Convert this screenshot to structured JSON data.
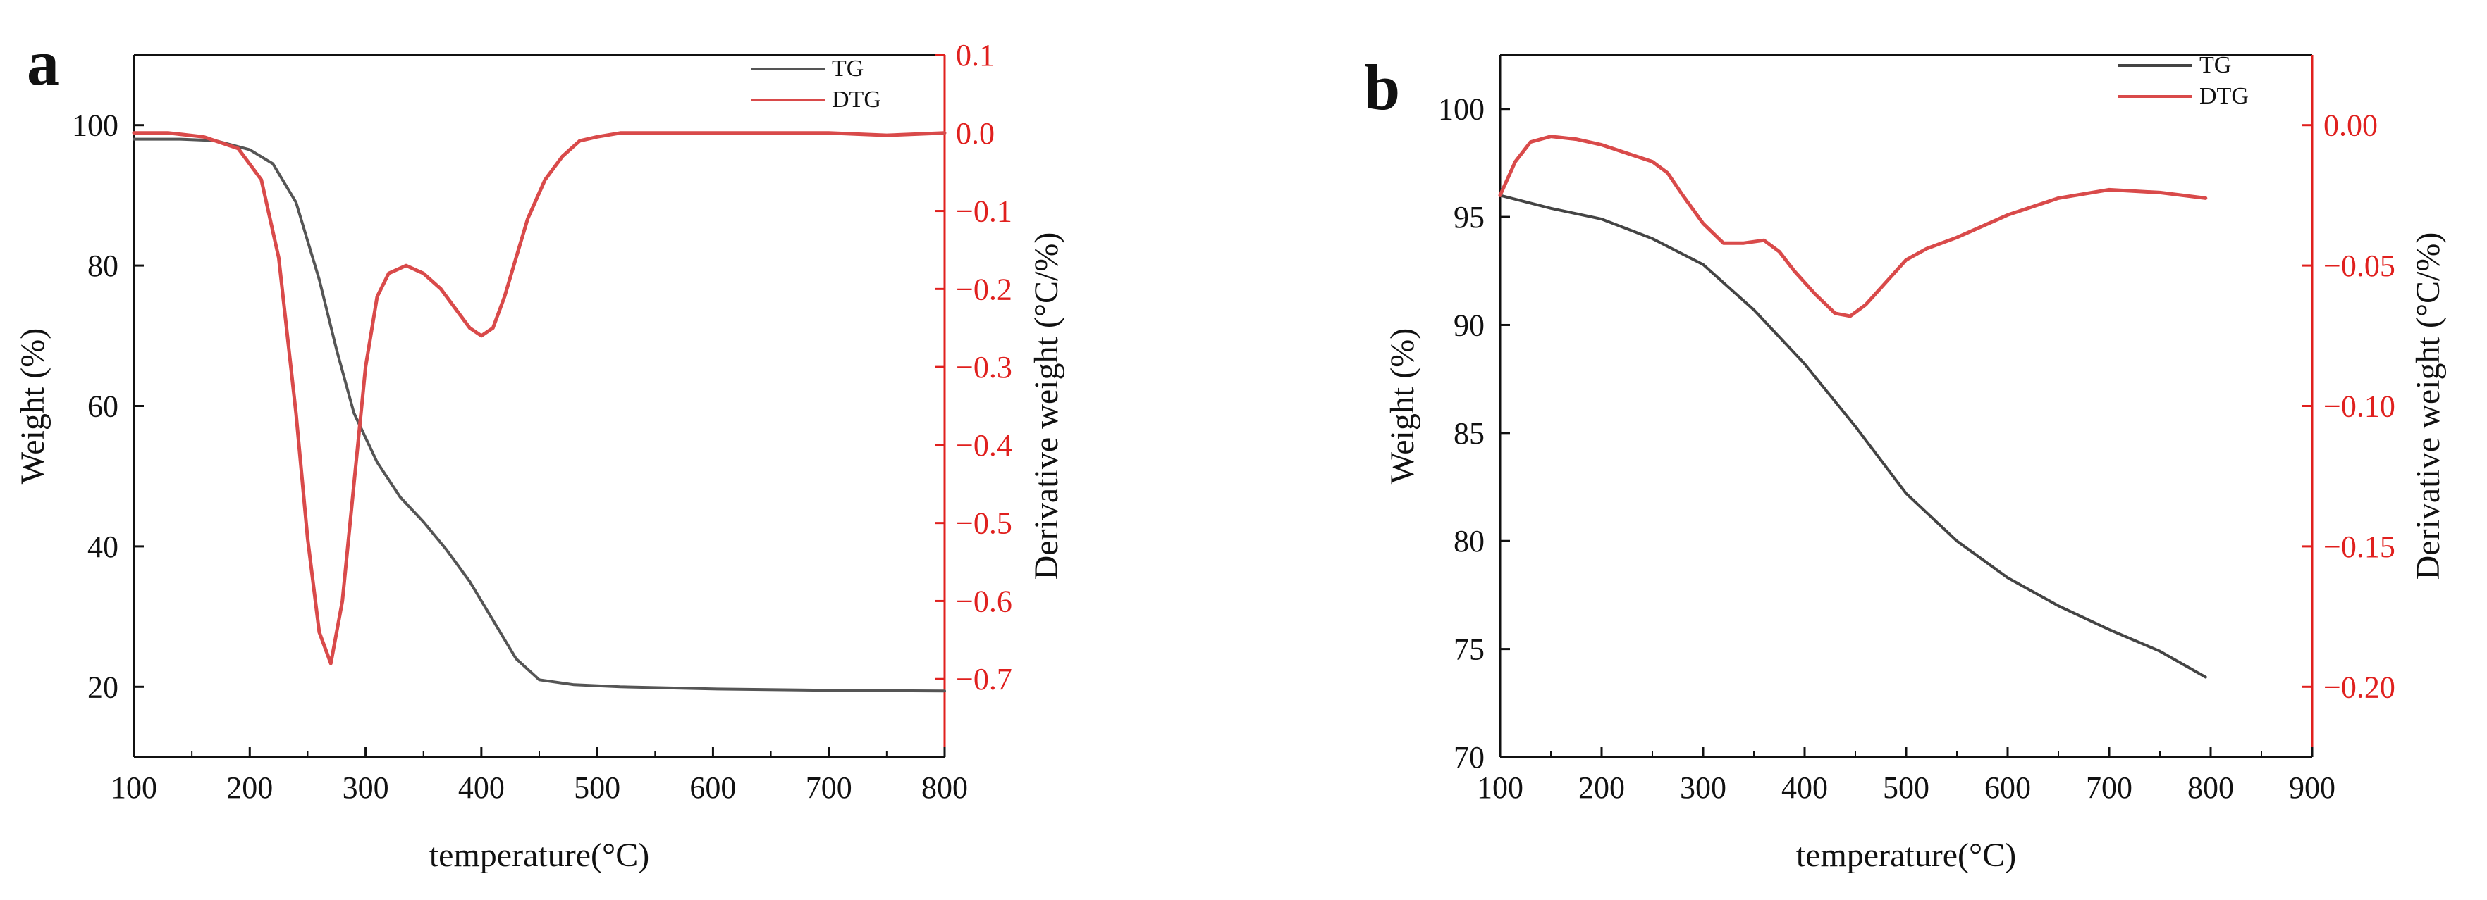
{
  "chart_data": [
    {
      "panel": "a",
      "type": "line",
      "xlabel": "temperature(°C)",
      "ylabel": "Weight (%)",
      "y2label": "Derivative weight (°C/%)",
      "xlim": [
        100,
        800
      ],
      "ylim": [
        10,
        110
      ],
      "y2lim": [
        -0.8,
        0.1
      ],
      "xticks": [
        "100",
        "200",
        "300",
        "400",
        "500",
        "600",
        "700",
        "800"
      ],
      "yticks": [
        "20",
        "40",
        "60",
        "80",
        "100"
      ],
      "y2ticks": [
        "0.1",
        "0.0",
        "−0.1",
        "−0.2",
        "−0.3",
        "−0.4",
        "−0.5",
        "−0.6",
        "−0.7"
      ],
      "legend": [
        "TG",
        "DTG"
      ],
      "series": [
        {
          "name": "TG",
          "axis": "left",
          "color": "#555555",
          "x": [
            100,
            140,
            170,
            200,
            220,
            240,
            260,
            275,
            290,
            310,
            330,
            350,
            370,
            390,
            410,
            430,
            450,
            480,
            520,
            600,
            700,
            800
          ],
          "y": [
            98,
            98,
            97.8,
            96.5,
            94.5,
            89,
            78,
            68,
            59,
            52,
            47,
            43.5,
            39.5,
            35,
            29.5,
            24,
            21,
            20.3,
            20,
            19.7,
            19.5,
            19.4
          ]
        },
        {
          "name": "DTG",
          "axis": "right",
          "color": "#d94a4a",
          "x": [
            100,
            130,
            160,
            190,
            210,
            225,
            240,
            250,
            260,
            270,
            280,
            290,
            300,
            310,
            320,
            335,
            350,
            365,
            380,
            390,
            400,
            410,
            420,
            430,
            440,
            455,
            470,
            485,
            500,
            520,
            560,
            600,
            650,
            700,
            750,
            800
          ],
          "y": [
            0.0,
            0.0,
            -0.005,
            -0.02,
            -0.06,
            -0.16,
            -0.36,
            -0.52,
            -0.64,
            -0.68,
            -0.6,
            -0.45,
            -0.3,
            -0.21,
            -0.18,
            -0.17,
            -0.18,
            -0.2,
            -0.23,
            -0.25,
            -0.26,
            -0.25,
            -0.21,
            -0.16,
            -0.11,
            -0.06,
            -0.03,
            -0.01,
            -0.005,
            0.0,
            0.0,
            0.0,
            0.0,
            0.0,
            -0.003,
            0.0
          ]
        }
      ]
    },
    {
      "panel": "b",
      "type": "line",
      "xlabel": "temperature(°C)",
      "ylabel": "Weight (%)",
      "y2label": "Derivative weight (°C/%)",
      "xlim": [
        100,
        900
      ],
      "ylim": [
        70,
        102.5
      ],
      "y2lim": [
        -0.225,
        0.025
      ],
      "xticks": [
        "100",
        "200",
        "300",
        "400",
        "500",
        "600",
        "700",
        "800",
        "900"
      ],
      "yticks": [
        "70",
        "75",
        "80",
        "85",
        "90",
        "95",
        "100"
      ],
      "y2ticks": [
        "0.00",
        "−0.05",
        "−0.10",
        "−0.15",
        "−0.20"
      ],
      "legend": [
        "TG",
        "DTG"
      ],
      "series": [
        {
          "name": "TG",
          "axis": "left",
          "color": "#444444",
          "x": [
            100,
            150,
            200,
            250,
            300,
            350,
            400,
            450,
            500,
            550,
            600,
            650,
            700,
            750,
            795
          ],
          "y": [
            96,
            95.4,
            94.9,
            94,
            92.8,
            90.7,
            88.2,
            85.3,
            82.2,
            80,
            78.3,
            77,
            75.9,
            74.9,
            73.7
          ]
        },
        {
          "name": "DTG",
          "axis": "right",
          "color": "#d94a4a",
          "x": [
            100,
            115,
            130,
            150,
            175,
            200,
            225,
            250,
            265,
            280,
            300,
            320,
            340,
            360,
            375,
            390,
            410,
            430,
            445,
            460,
            480,
            500,
            520,
            550,
            600,
            650,
            700,
            750,
            795
          ],
          "y": [
            -0.025,
            -0.013,
            -0.006,
            -0.004,
            -0.005,
            -0.007,
            -0.01,
            -0.013,
            -0.017,
            -0.025,
            -0.035,
            -0.042,
            -0.042,
            -0.041,
            -0.045,
            -0.052,
            -0.06,
            -0.067,
            -0.068,
            -0.064,
            -0.056,
            -0.048,
            -0.044,
            -0.04,
            -0.032,
            -0.026,
            -0.023,
            -0.024,
            -0.026
          ]
        }
      ]
    }
  ]
}
